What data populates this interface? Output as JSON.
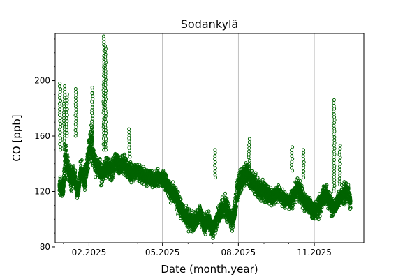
{
  "chart_data": {
    "type": "scatter",
    "title": "Sodankylä",
    "xlabel": "Date (month.year)",
    "ylabel": "CO [ppb]",
    "xlim": [
      "2024-12-22",
      "2025-12-31"
    ],
    "ylim": [
      83,
      234
    ],
    "x_ticks": [
      {
        "date": "2025-02-01",
        "label": "02.2025"
      },
      {
        "date": "2025-05-01",
        "label": "05.2025"
      },
      {
        "date": "2025-08-01",
        "label": "08.2025"
      },
      {
        "date": "2025-11-01",
        "label": "11.2025"
      }
    ],
    "x_minor_ticks": [
      "2025-01-01",
      "2025-03-01",
      "2025-04-01",
      "2025-06-01",
      "2025-07-01",
      "2025-09-01",
      "2025-10-01",
      "2025-12-01"
    ],
    "y_ticks": [
      80,
      120,
      160,
      200
    ],
    "grid": "vertical-major",
    "marker": {
      "shape": "open-circle",
      "color": "#006400"
    },
    "series": [
      {
        "name": "",
        "x": [
          "2024-12-27",
          "2025-01-01",
          "2025-01-03",
          "2025-01-06",
          "2025-01-10",
          "2025-01-14",
          "2025-01-18",
          "2025-01-22",
          "2025-01-27",
          "2025-02-01",
          "2025-02-04",
          "2025-02-08",
          "2025-02-12",
          "2025-02-16",
          "2025-02-20",
          "2025-02-24",
          "2025-03-01",
          "2025-03-05",
          "2025-03-10",
          "2025-03-15",
          "2025-03-20",
          "2025-03-25",
          "2025-04-01",
          "2025-04-06",
          "2025-04-11",
          "2025-04-16",
          "2025-04-21",
          "2025-04-26",
          "2025-05-01",
          "2025-05-06",
          "2025-05-11",
          "2025-05-16",
          "2025-05-21",
          "2025-05-26",
          "2025-06-01",
          "2025-06-06",
          "2025-06-11",
          "2025-06-16",
          "2025-06-21",
          "2025-06-26",
          "2025-07-01",
          "2025-07-06",
          "2025-07-11",
          "2025-07-16",
          "2025-07-21",
          "2025-07-26",
          "2025-08-01",
          "2025-08-06",
          "2025-08-11",
          "2025-08-16",
          "2025-08-21",
          "2025-08-26",
          "2025-09-01",
          "2025-09-06",
          "2025-09-11",
          "2025-09-16",
          "2025-09-21",
          "2025-09-26",
          "2025-10-01",
          "2025-10-06",
          "2025-10-11",
          "2025-10-16",
          "2025-10-21",
          "2025-10-26",
          "2025-11-01",
          "2025-11-06",
          "2025-11-11",
          "2025-11-16",
          "2025-11-21",
          "2025-11-26",
          "2025-12-01",
          "2025-12-06",
          "2025-12-11",
          "2025-12-15"
        ],
        "y": [
          125,
          122,
          145,
          140,
          128,
          132,
          118,
          135,
          128,
          150,
          158,
          140,
          138,
          132,
          136,
          138,
          135,
          142,
          138,
          140,
          136,
          133,
          135,
          132,
          130,
          130,
          128,
          130,
          130,
          125,
          120,
          118,
          110,
          105,
          100,
          98,
          100,
          105,
          95,
          100,
          92,
          100,
          105,
          110,
          102,
          100,
          125,
          130,
          135,
          128,
          125,
          122,
          120,
          118,
          115,
          118,
          118,
          115,
          112,
          115,
          122,
          118,
          112,
          110,
          105,
          108,
          115,
          118,
          110,
          108,
          115,
          118,
          120,
          112
        ],
        "band_half_width": [
          8,
          10,
          15,
          12,
          10,
          10,
          8,
          12,
          10,
          15,
          15,
          12,
          10,
          10,
          10,
          10,
          10,
          10,
          10,
          10,
          10,
          8,
          8,
          8,
          8,
          8,
          8,
          8,
          8,
          8,
          10,
          10,
          10,
          10,
          10,
          8,
          8,
          10,
          8,
          8,
          8,
          10,
          10,
          12,
          10,
          10,
          12,
          10,
          10,
          10,
          10,
          10,
          10,
          8,
          8,
          8,
          8,
          8,
          8,
          8,
          10,
          10,
          10,
          8,
          8,
          10,
          10,
          10,
          10,
          8,
          8,
          10,
          10,
          8
        ]
      }
    ],
    "spikes": [
      {
        "x": "2024-12-28",
        "y_min": 150,
        "y_max": 198
      },
      {
        "x": "2025-01-02",
        "y_min": 150,
        "y_max": 196
      },
      {
        "x": "2025-01-05",
        "y_min": 160,
        "y_max": 190
      },
      {
        "x": "2025-01-16",
        "y_min": 160,
        "y_max": 194
      },
      {
        "x": "2025-02-05",
        "y_min": 150,
        "y_max": 195
      },
      {
        "x": "2025-02-19",
        "y_min": 150,
        "y_max": 232
      },
      {
        "x": "2025-02-21",
        "y_min": 150,
        "y_max": 225
      },
      {
        "x": "2025-03-22",
        "y_min": 145,
        "y_max": 165
      },
      {
        "x": "2025-07-04",
        "y_min": 130,
        "y_max": 150
      },
      {
        "x": "2025-08-14",
        "y_min": 140,
        "y_max": 158
      },
      {
        "x": "2025-10-05",
        "y_min": 135,
        "y_max": 152
      },
      {
        "x": "2025-10-19",
        "y_min": 130,
        "y_max": 150
      },
      {
        "x": "2025-11-25",
        "y_min": 120,
        "y_max": 186
      },
      {
        "x": "2025-12-02",
        "y_min": 125,
        "y_max": 153
      }
    ]
  }
}
